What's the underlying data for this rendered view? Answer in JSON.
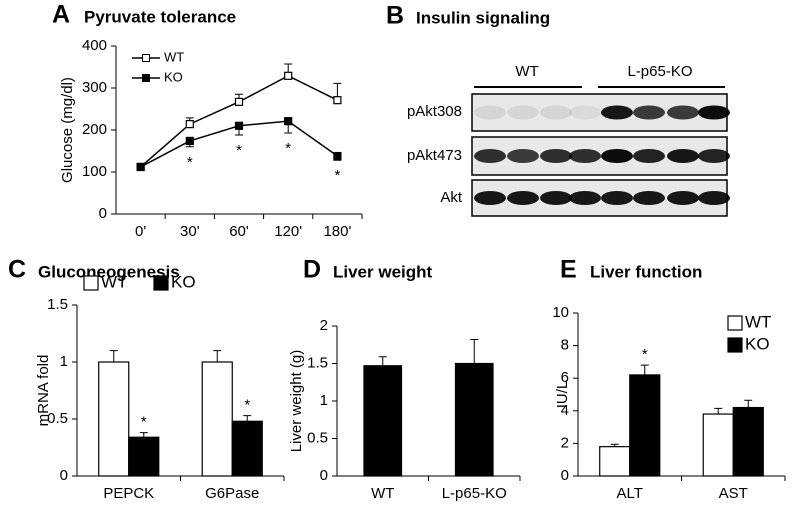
{
  "chart_data": [
    {
      "type": "line",
      "label": "A",
      "title": "Pyruvate tolerance",
      "ylabel": "Glucose (mg/dl)",
      "categories": [
        "0'",
        "30'",
        "60'",
        "120'",
        "180'"
      ],
      "series": [
        {
          "name": "WT",
          "color": "#000000",
          "fill": "#ffffff",
          "values": [
            112,
            214,
            267,
            329,
            271
          ],
          "errors": [
            5,
            15,
            18,
            28,
            40
          ],
          "significance": [
            null,
            null,
            null,
            null,
            null
          ]
        },
        {
          "name": "KO",
          "color": "#000000",
          "fill": "#000000",
          "values": [
            112,
            174,
            210,
            221,
            138
          ],
          "errors": [
            5,
            14,
            22,
            28,
            10
          ],
          "significance": [
            null,
            "*",
            "*",
            "*",
            "*"
          ]
        }
      ],
      "ylim": [
        0,
        400
      ],
      "yticks": [
        0,
        100,
        200,
        300,
        400
      ],
      "legend": "upper left"
    },
    {
      "type": "bar",
      "label": "C",
      "title": "Gluconeogenesis",
      "ylabel": "mRNA fold",
      "categories": [
        "PEPCK",
        "G6Pase"
      ],
      "series": [
        {
          "name": "WT",
          "color": "#000000",
          "fill": "#ffffff",
          "values": [
            1.0,
            1.0
          ],
          "errors": [
            0.1,
            0.1
          ],
          "significance": [
            null,
            null
          ]
        },
        {
          "name": "KO",
          "color": "#000000",
          "fill": "#000000",
          "values": [
            0.34,
            0.48
          ],
          "errors": [
            0.04,
            0.05
          ],
          "significance": [
            "*",
            "*"
          ]
        }
      ],
      "ylim": [
        0,
        1.5
      ],
      "yticks": [
        0,
        0.5,
        1,
        1.5
      ],
      "legend": "top"
    },
    {
      "type": "bar",
      "label": "D",
      "title": "Liver weight",
      "ylabel": "Liver weight (g)",
      "categories": [
        "WT",
        "L-p65-KO"
      ],
      "series": [
        {
          "color": "#000000",
          "fill": "#000000",
          "values": [
            1.47,
            1.5
          ],
          "errors": [
            0.12,
            0.32
          ],
          "significance": [
            null,
            null
          ]
        }
      ],
      "ylim": [
        0,
        2
      ],
      "yticks": [
        0,
        0.5,
        1,
        1.5,
        2
      ]
    },
    {
      "type": "bar",
      "label": "E",
      "title": "Liver function",
      "ylabel": "IU/L",
      "categories": [
        "ALT",
        "AST"
      ],
      "series": [
        {
          "name": "WT",
          "color": "#000000",
          "fill": "#ffffff",
          "values": [
            1.8,
            3.8
          ],
          "errors": [
            0.15,
            0.35
          ],
          "significance": [
            null,
            null
          ]
        },
        {
          "name": "KO",
          "color": "#000000",
          "fill": "#000000",
          "values": [
            6.2,
            4.2
          ],
          "errors": [
            0.6,
            0.45
          ],
          "significance": [
            "*",
            null
          ]
        }
      ],
      "ylim": [
        0,
        10
      ],
      "yticks": [
        0,
        2,
        4,
        6,
        8,
        10
      ],
      "legend": "upper right"
    }
  ],
  "blot": {
    "label": "B",
    "title": "Insulin signaling",
    "groups": [
      "WT",
      "L-p65-KO"
    ],
    "rows": [
      "pAkt308",
      "pAkt473",
      "Akt"
    ]
  }
}
